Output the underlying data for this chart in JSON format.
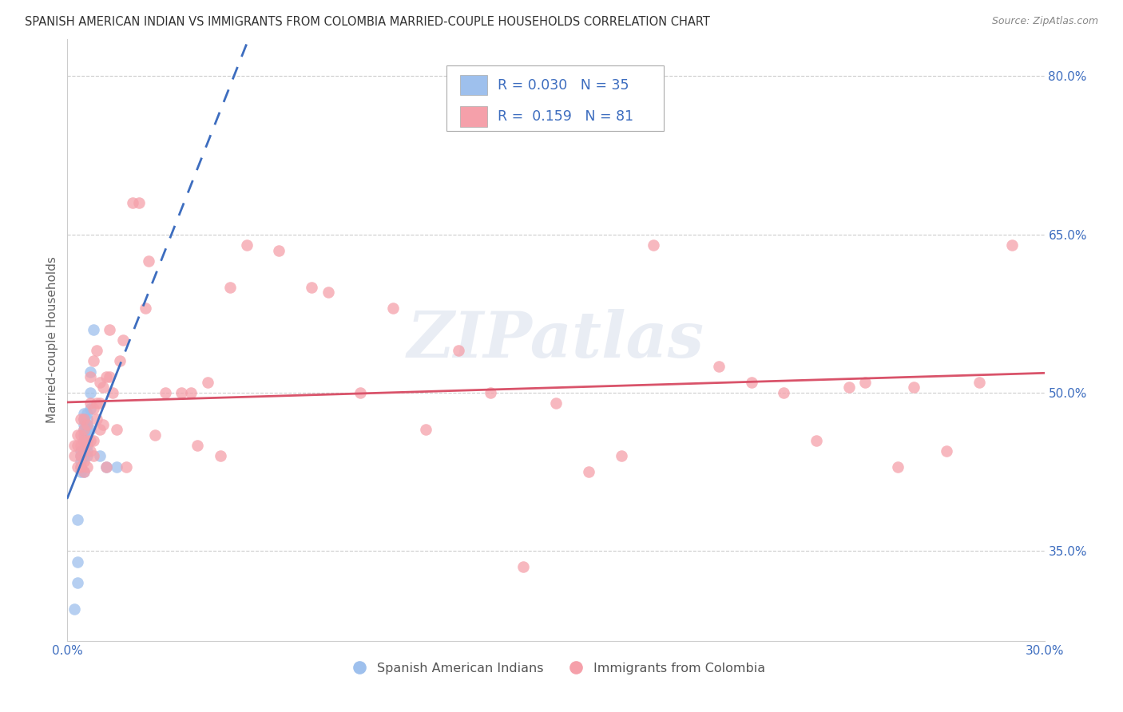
{
  "title": "SPANISH AMERICAN INDIAN VS IMMIGRANTS FROM COLOMBIA MARRIED-COUPLE HOUSEHOLDS CORRELATION CHART",
  "source": "Source: ZipAtlas.com",
  "ylabel": "Married-couple Households",
  "xlim": [
    0.0,
    0.3
  ],
  "ylim": [
    0.265,
    0.835
  ],
  "xtick_vals": [
    0.0,
    0.05,
    0.1,
    0.15,
    0.2,
    0.25,
    0.3
  ],
  "xticklabels": [
    "0.0%",
    "",
    "",
    "",
    "",
    "",
    "30.0%"
  ],
  "ytick_positions": [
    0.35,
    0.5,
    0.65,
    0.8
  ],
  "ytick_labels": [
    "35.0%",
    "50.0%",
    "65.0%",
    "80.0%"
  ],
  "blue_R": 0.03,
  "blue_N": 35,
  "pink_R": 0.159,
  "pink_N": 81,
  "blue_color": "#9ec0ed",
  "pink_color": "#f5a0aa",
  "blue_line_color": "#3d6dbf",
  "pink_line_color": "#d9536a",
  "blue_label": "Spanish American Indians",
  "pink_label": "Immigrants from Colombia",
  "watermark": "ZIPatlas",
  "blue_x": [
    0.002,
    0.003,
    0.003,
    0.003,
    0.004,
    0.004,
    0.004,
    0.004,
    0.004,
    0.005,
    0.005,
    0.005,
    0.005,
    0.005,
    0.005,
    0.005,
    0.005,
    0.005,
    0.006,
    0.006,
    0.006,
    0.006,
    0.006,
    0.006,
    0.006,
    0.006,
    0.006,
    0.007,
    0.007,
    0.007,
    0.007,
    0.008,
    0.01,
    0.012,
    0.015
  ],
  "blue_y": [
    0.295,
    0.32,
    0.34,
    0.38,
    0.425,
    0.43,
    0.435,
    0.44,
    0.445,
    0.425,
    0.44,
    0.445,
    0.455,
    0.46,
    0.465,
    0.47,
    0.475,
    0.48,
    0.44,
    0.445,
    0.45,
    0.455,
    0.46,
    0.465,
    0.47,
    0.475,
    0.48,
    0.465,
    0.485,
    0.5,
    0.52,
    0.56,
    0.44,
    0.43,
    0.43
  ],
  "pink_x": [
    0.002,
    0.002,
    0.003,
    0.003,
    0.003,
    0.004,
    0.004,
    0.004,
    0.004,
    0.004,
    0.005,
    0.005,
    0.005,
    0.005,
    0.005,
    0.005,
    0.006,
    0.006,
    0.006,
    0.007,
    0.007,
    0.007,
    0.007,
    0.008,
    0.008,
    0.008,
    0.008,
    0.009,
    0.009,
    0.009,
    0.01,
    0.01,
    0.01,
    0.011,
    0.011,
    0.012,
    0.012,
    0.013,
    0.013,
    0.014,
    0.015,
    0.016,
    0.017,
    0.018,
    0.02,
    0.022,
    0.024,
    0.025,
    0.027,
    0.03,
    0.035,
    0.038,
    0.04,
    0.043,
    0.047,
    0.05,
    0.055,
    0.065,
    0.075,
    0.08,
    0.09,
    0.1,
    0.11,
    0.12,
    0.13,
    0.14,
    0.15,
    0.16,
    0.17,
    0.18,
    0.2,
    0.21,
    0.22,
    0.23,
    0.24,
    0.245,
    0.255,
    0.26,
    0.27,
    0.28,
    0.29
  ],
  "pink_y": [
    0.44,
    0.45,
    0.43,
    0.45,
    0.46,
    0.43,
    0.44,
    0.45,
    0.46,
    0.475,
    0.425,
    0.435,
    0.445,
    0.455,
    0.465,
    0.475,
    0.43,
    0.455,
    0.47,
    0.445,
    0.455,
    0.49,
    0.515,
    0.44,
    0.455,
    0.485,
    0.53,
    0.475,
    0.49,
    0.54,
    0.465,
    0.49,
    0.51,
    0.47,
    0.505,
    0.43,
    0.515,
    0.515,
    0.56,
    0.5,
    0.465,
    0.53,
    0.55,
    0.43,
    0.68,
    0.68,
    0.58,
    0.625,
    0.46,
    0.5,
    0.5,
    0.5,
    0.45,
    0.51,
    0.44,
    0.6,
    0.64,
    0.635,
    0.6,
    0.595,
    0.5,
    0.58,
    0.465,
    0.54,
    0.5,
    0.335,
    0.49,
    0.425,
    0.44,
    0.64,
    0.525,
    0.51,
    0.5,
    0.455,
    0.505,
    0.51,
    0.43,
    0.505,
    0.445,
    0.51,
    0.64
  ]
}
